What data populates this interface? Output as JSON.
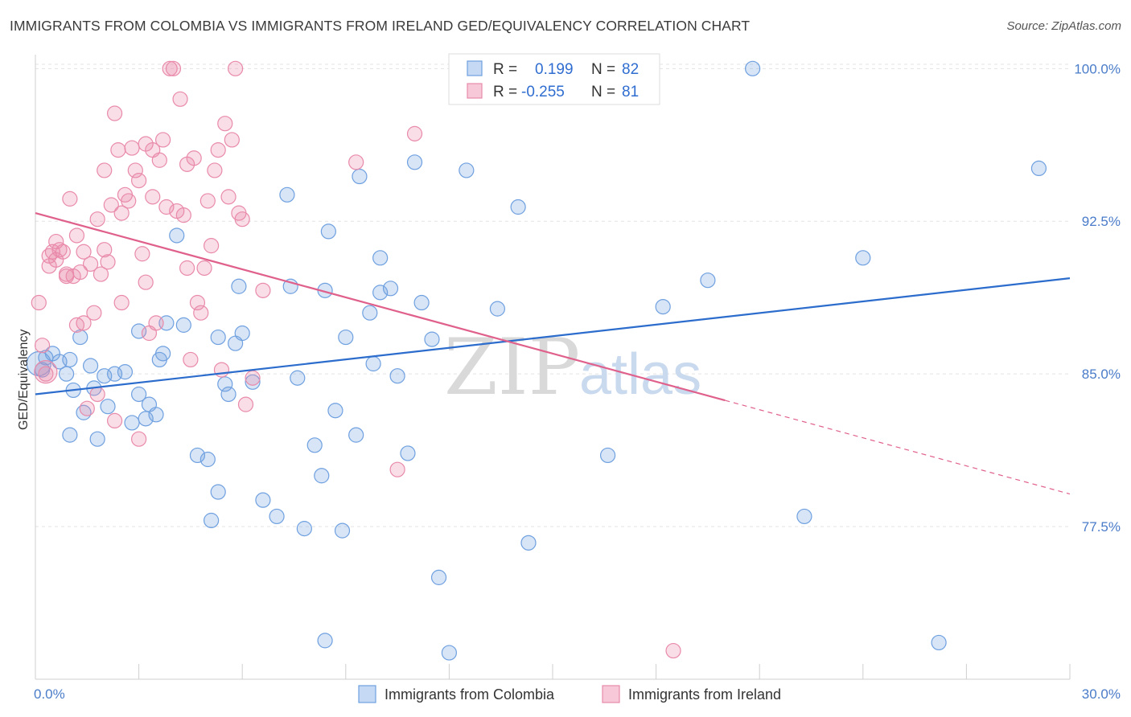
{
  "title": "IMMIGRANTS FROM COLOMBIA VS IMMIGRANTS FROM IRELAND GED/EQUIVALENCY CORRELATION CHART",
  "source": "Source: ZipAtlas.com",
  "watermark": {
    "zip": "ZIP",
    "atlas": "atlas"
  },
  "legend_box": {
    "rows": [
      {
        "r_label": "R =",
        "r_value": "0.199",
        "n_label": "N =",
        "n_value": "82",
        "color": "#6fa0e0"
      },
      {
        "r_label": "R =",
        "r_value": "-0.255",
        "n_label": "N =",
        "n_value": "81",
        "color": "#e98aaa"
      }
    ]
  },
  "chart_data": {
    "type": "scatter",
    "title": "IMMIGRANTS FROM COLOMBIA VS IMMIGRANTS FROM IRELAND GED/EQUIVALENCY CORRELATION CHART",
    "xlabel": "",
    "ylabel": "GED/Equivalency",
    "xlim": [
      0,
      30
    ],
    "ylim": [
      70.0,
      101.0
    ],
    "x_tick_labels": [
      "0.0%",
      "30.0%"
    ],
    "y_ticks": [
      77.5,
      85.0,
      92.5,
      100.0
    ],
    "y_tick_labels": [
      "77.5%",
      "85.0%",
      "92.5%",
      "100.0%"
    ],
    "grid": true,
    "legend_position": "bottom",
    "series": [
      {
        "name": "Immigrants from Colombia",
        "color": "#6fa0e0",
        "points": [
          [
            0.1,
            85.5
          ],
          [
            0.2,
            85.2
          ],
          [
            0.3,
            85.8
          ],
          [
            0.5,
            86.0
          ],
          [
            0.7,
            85.6
          ],
          [
            0.9,
            85.0
          ],
          [
            1.0,
            85.7
          ],
          [
            1.1,
            84.2
          ],
          [
            1.3,
            86.8
          ],
          [
            1.4,
            83.1
          ],
          [
            1.6,
            85.4
          ],
          [
            1.7,
            84.3
          ],
          [
            1.8,
            81.8
          ],
          [
            2.0,
            84.9
          ],
          [
            2.1,
            83.4
          ],
          [
            2.3,
            85.0
          ],
          [
            2.6,
            85.1
          ],
          [
            2.8,
            82.6
          ],
          [
            3.0,
            87.1
          ],
          [
            3.0,
            84.0
          ],
          [
            3.2,
            82.8
          ],
          [
            3.3,
            83.5
          ],
          [
            3.5,
            83.0
          ],
          [
            3.6,
            85.7
          ],
          [
            3.7,
            86.0
          ],
          [
            3.8,
            87.5
          ],
          [
            4.1,
            91.8
          ],
          [
            4.3,
            87.4
          ],
          [
            4.7,
            81.0
          ],
          [
            5.0,
            80.8
          ],
          [
            5.1,
            77.8
          ],
          [
            5.3,
            79.2
          ],
          [
            5.3,
            86.8
          ],
          [
            5.5,
            84.5
          ],
          [
            5.6,
            84.0
          ],
          [
            5.8,
            86.5
          ],
          [
            5.9,
            89.3
          ],
          [
            6.0,
            87.0
          ],
          [
            6.3,
            84.6
          ],
          [
            6.6,
            78.8
          ],
          [
            7.0,
            78.0
          ],
          [
            7.3,
            93.8
          ],
          [
            7.4,
            89.3
          ],
          [
            7.6,
            84.8
          ],
          [
            7.8,
            77.4
          ],
          [
            8.1,
            81.5
          ],
          [
            8.3,
            80.0
          ],
          [
            8.4,
            89.1
          ],
          [
            8.5,
            92.0
          ],
          [
            8.7,
            83.2
          ],
          [
            8.9,
            77.3
          ],
          [
            9.0,
            86.8
          ],
          [
            9.3,
            82.0
          ],
          [
            9.4,
            94.7
          ],
          [
            9.7,
            88.0
          ],
          [
            9.8,
            85.5
          ],
          [
            10.0,
            90.7
          ],
          [
            10.0,
            89.0
          ],
          [
            10.3,
            89.2
          ],
          [
            10.5,
            84.9
          ],
          [
            10.8,
            81.1
          ],
          [
            11.0,
            95.4
          ],
          [
            11.2,
            88.5
          ],
          [
            11.5,
            86.7
          ],
          [
            11.7,
            75.0
          ],
          [
            12.0,
            71.3
          ],
          [
            12.5,
            95.0
          ],
          [
            13.4,
            88.2
          ],
          [
            14.0,
            93.2
          ],
          [
            14.3,
            76.7
          ],
          [
            15.1,
            100.0
          ],
          [
            15.4,
            99.9
          ],
          [
            16.6,
            81.0
          ],
          [
            18.2,
            88.3
          ],
          [
            19.5,
            89.6
          ],
          [
            20.8,
            100.0
          ],
          [
            22.3,
            78.0
          ],
          [
            24.0,
            90.7
          ],
          [
            26.2,
            71.8
          ],
          [
            29.1,
            95.1
          ],
          [
            8.4,
            71.9
          ],
          [
            1.0,
            82.0
          ]
        ]
      },
      {
        "name": "Immigrants from Ireland",
        "color": "#e98aaa",
        "points": [
          [
            0.1,
            88.5
          ],
          [
            0.2,
            86.4
          ],
          [
            0.3,
            85.0
          ],
          [
            0.4,
            90.3
          ],
          [
            0.6,
            91.5
          ],
          [
            0.8,
            91.0
          ],
          [
            0.9,
            89.9
          ],
          [
            1.0,
            93.6
          ],
          [
            1.2,
            91.8
          ],
          [
            1.3,
            90.0
          ],
          [
            1.4,
            87.5
          ],
          [
            1.5,
            83.3
          ],
          [
            1.7,
            88.0
          ],
          [
            1.8,
            92.6
          ],
          [
            2.0,
            95.0
          ],
          [
            2.1,
            90.5
          ],
          [
            2.2,
            93.3
          ],
          [
            2.3,
            97.8
          ],
          [
            2.4,
            96.0
          ],
          [
            2.5,
            92.9
          ],
          [
            2.7,
            93.5
          ],
          [
            2.8,
            96.1
          ],
          [
            2.9,
            95.0
          ],
          [
            3.0,
            94.5
          ],
          [
            3.1,
            90.9
          ],
          [
            3.2,
            96.3
          ],
          [
            3.3,
            87.0
          ],
          [
            3.4,
            93.7
          ],
          [
            3.5,
            87.5
          ],
          [
            3.6,
            95.5
          ],
          [
            3.7,
            96.5
          ],
          [
            3.8,
            93.2
          ],
          [
            3.9,
            100.0
          ],
          [
            4.0,
            100.0
          ],
          [
            4.1,
            93.0
          ],
          [
            4.2,
            98.5
          ],
          [
            4.3,
            92.8
          ],
          [
            4.4,
            95.3
          ],
          [
            4.5,
            85.7
          ],
          [
            4.6,
            95.6
          ],
          [
            4.7,
            88.5
          ],
          [
            4.8,
            88.0
          ],
          [
            4.9,
            90.2
          ],
          [
            5.0,
            93.5
          ],
          [
            5.1,
            91.3
          ],
          [
            5.2,
            95.0
          ],
          [
            5.3,
            96.0
          ],
          [
            5.4,
            85.2
          ],
          [
            5.5,
            97.3
          ],
          [
            5.6,
            93.7
          ],
          [
            5.7,
            96.5
          ],
          [
            5.8,
            100.0
          ],
          [
            5.9,
            92.9
          ],
          [
            6.0,
            92.6
          ],
          [
            6.1,
            83.5
          ],
          [
            6.3,
            84.8
          ],
          [
            6.6,
            89.1
          ],
          [
            0.4,
            90.8
          ],
          [
            0.5,
            91.0
          ],
          [
            0.6,
            90.6
          ],
          [
            0.7,
            91.1
          ],
          [
            0.9,
            89.8
          ],
          [
            1.1,
            89.8
          ],
          [
            1.2,
            87.4
          ],
          [
            1.4,
            91.0
          ],
          [
            1.6,
            90.4
          ],
          [
            1.9,
            89.9
          ],
          [
            2.0,
            91.1
          ],
          [
            2.3,
            82.7
          ],
          [
            2.5,
            88.5
          ],
          [
            3.0,
            81.8
          ],
          [
            3.2,
            89.5
          ],
          [
            9.3,
            95.4
          ],
          [
            10.5,
            80.3
          ],
          [
            11.0,
            96.8
          ],
          [
            18.5,
            71.4
          ],
          [
            1.8,
            84.0
          ],
          [
            2.6,
            93.8
          ],
          [
            3.4,
            96.0
          ],
          [
            4.4,
            90.2
          ],
          [
            0.3,
            85.1
          ]
        ]
      }
    ],
    "trend_lines": [
      {
        "series": "Immigrants from Colombia",
        "x": [
          0,
          30
        ],
        "y": [
          84.0,
          89.7
        ],
        "color": "#2b6ccc"
      },
      {
        "series": "Immigrants from Ireland",
        "x": [
          0,
          20.0
        ],
        "y": [
          92.9,
          83.7
        ],
        "x_dashed_end": 30,
        "y_dashed_end": 79.1,
        "color": "#e0608c"
      }
    ]
  },
  "bottom_legend": {
    "items": [
      {
        "label": "Immigrants from Colombia",
        "color": "#6fa0e0"
      },
      {
        "label": "Immigrants from Ireland",
        "color": "#e98aaa"
      }
    ]
  }
}
